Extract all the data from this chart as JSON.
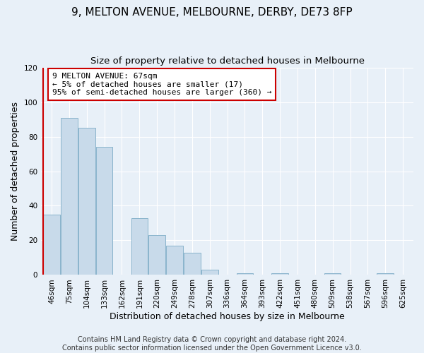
{
  "title": "9, MELTON AVENUE, MELBOURNE, DERBY, DE73 8FP",
  "subtitle": "Size of property relative to detached houses in Melbourne",
  "xlabel": "Distribution of detached houses by size in Melbourne",
  "ylabel": "Number of detached properties",
  "bin_labels": [
    "46sqm",
    "75sqm",
    "104sqm",
    "133sqm",
    "162sqm",
    "191sqm",
    "220sqm",
    "249sqm",
    "278sqm",
    "307sqm",
    "336sqm",
    "364sqm",
    "393sqm",
    "422sqm",
    "451sqm",
    "480sqm",
    "509sqm",
    "538sqm",
    "567sqm",
    "596sqm",
    "625sqm"
  ],
  "bar_heights": [
    35,
    91,
    85,
    74,
    0,
    33,
    23,
    17,
    13,
    3,
    0,
    1,
    0,
    1,
    0,
    0,
    1,
    0,
    0,
    1,
    0
  ],
  "bar_color": "#c8daea",
  "bar_edgecolor": "#8ab4cc",
  "annotation_line1": "9 MELTON AVENUE: 67sqm",
  "annotation_line2": "← 5% of detached houses are smaller (17)",
  "annotation_line3": "95% of semi-detached houses are larger (360) →",
  "annotation_box_edgecolor": "#cc0000",
  "annotation_box_facecolor": "#ffffff",
  "vline_color": "#cc0000",
  "ylim": [
    0,
    120
  ],
  "yticks": [
    0,
    20,
    40,
    60,
    80,
    100,
    120
  ],
  "footer_line1": "Contains HM Land Registry data © Crown copyright and database right 2024.",
  "footer_line2": "Contains public sector information licensed under the Open Government Licence v3.0.",
  "bg_color": "#e8f0f8",
  "title_fontsize": 11,
  "subtitle_fontsize": 9.5,
  "axis_label_fontsize": 9,
  "tick_fontsize": 7.5,
  "footer_fontsize": 7
}
